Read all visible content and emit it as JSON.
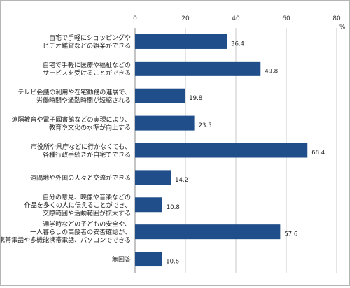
{
  "chart_data": {
    "type": "bar",
    "orientation": "horizontal",
    "title": "",
    "xlabel": "",
    "ylabel": "",
    "x_unit": "%",
    "xlim": [
      0,
      80
    ],
    "x_ticks": [
      "0",
      "20",
      "40",
      "60",
      "80"
    ],
    "grid": true,
    "legend": "none",
    "bar_color": "#1f4e8a",
    "categories": [
      [
        "自宅で手軽にショッピングや",
        "ビデオ鑑賞などの娯楽ができる"
      ],
      [
        "自宅で手軽に医療や福祉などの",
        "サービスを受けることができる"
      ],
      [
        "テレビ会議の利用や在宅勤務の進展で、",
        "労働時間や通勤時間が短縮される"
      ],
      [
        "遠隔教育や電子図書館などの実現により、",
        "教育や文化の水準が向上する"
      ],
      [
        "市役所や県庁などに行かなくても、",
        "各種行政手続きが自宅でできる"
      ],
      [
        "遠隔地や外国の人々と交流ができる"
      ],
      [
        "自分の意見、映像や音楽などの",
        "作品を多くの人に伝えることができ、",
        "交際範囲や活動範囲が拡大する"
      ],
      [
        "通学時などの子どもの安全や、",
        "一人暮らしの高齢者の安否確認が、",
        "携帯電話や多機能携帯電話、パソコンでできる"
      ],
      [
        "無回答"
      ]
    ],
    "values": [
      36.4,
      49.8,
      19.8,
      23.5,
      68.4,
      14.2,
      10.8,
      57.6,
      10.6
    ],
    "value_labels": [
      "36.4",
      "49.8",
      "19.8",
      "23.5",
      "68.4",
      "14.2",
      "10.8",
      "57.6",
      "10.6"
    ]
  }
}
